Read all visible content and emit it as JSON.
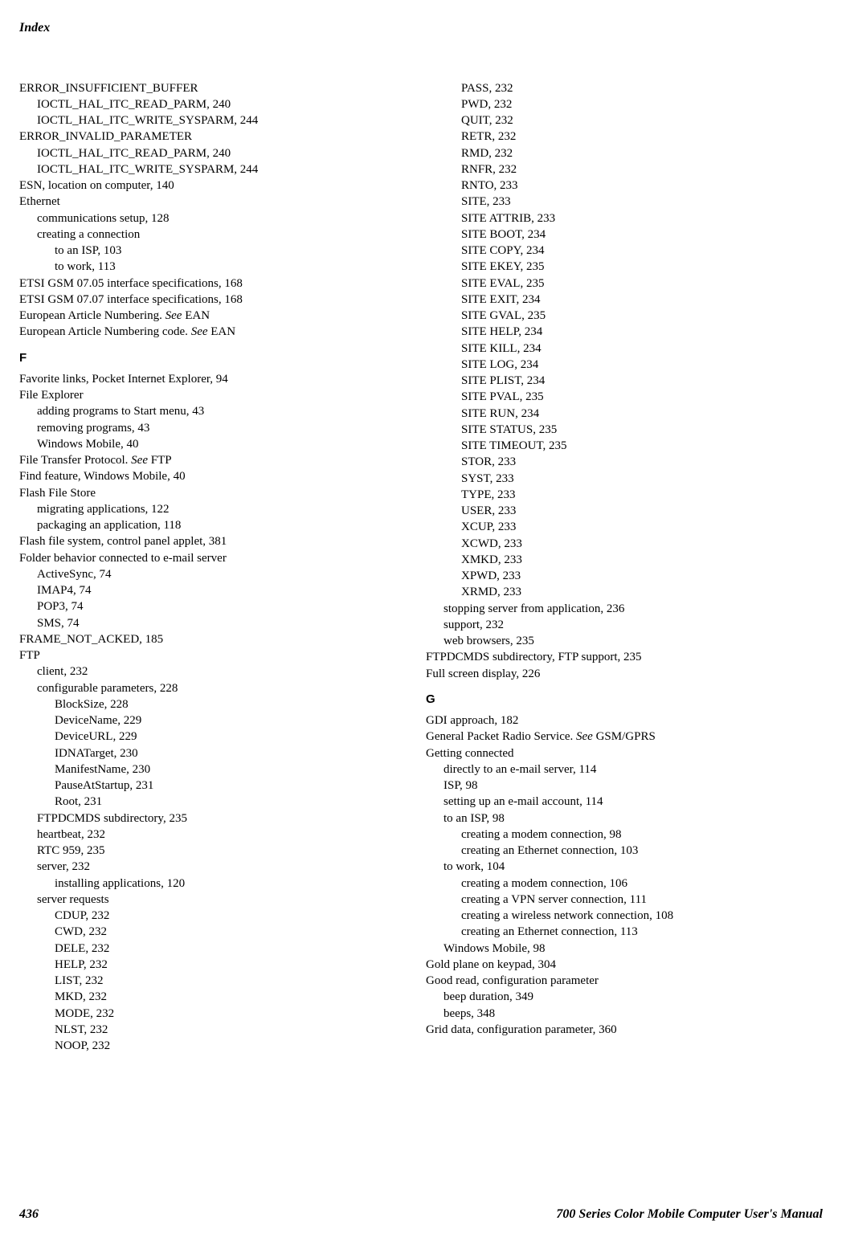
{
  "header": "Index",
  "footer": {
    "page": "436",
    "title": "700 Series Color Mobile Computer User's Manual"
  },
  "col1": [
    {
      "t": "ERROR_INSUFFICIENT_BUFFER",
      "l": 0
    },
    {
      "t": "IOCTL_HAL_ITC_READ_PARM, 240",
      "l": 1
    },
    {
      "t": "IOCTL_HAL_ITC_WRITE_SYSPARM, 244",
      "l": 1
    },
    {
      "t": "ERROR_INVALID_PARAMETER",
      "l": 0
    },
    {
      "t": "IOCTL_HAL_ITC_READ_PARM, 240",
      "l": 1
    },
    {
      "t": "IOCTL_HAL_ITC_WRITE_SYSPARM, 244",
      "l": 1
    },
    {
      "t": "ESN, location on computer, 140",
      "l": 0
    },
    {
      "t": "Ethernet",
      "l": 0
    },
    {
      "t": "communications setup, 128",
      "l": 1
    },
    {
      "t": "creating a connection",
      "l": 1
    },
    {
      "t": "to an ISP, 103",
      "l": 2
    },
    {
      "t": "to work, 113",
      "l": 2
    },
    {
      "t": "ETSI GSM 07.05 interface specifications, 168",
      "l": 0
    },
    {
      "t": "ETSI GSM 07.07 interface specifications, 168",
      "l": 0
    },
    {
      "t": "European Article Numbering. <em>See</em> EAN",
      "l": 0
    },
    {
      "t": "European Article Numbering code. <em>See</em> EAN",
      "l": 0
    },
    {
      "t": "F",
      "l": 0,
      "letter": true
    },
    {
      "t": "Favorite links, Pocket Internet Explorer, 94",
      "l": 0
    },
    {
      "t": "File Explorer",
      "l": 0
    },
    {
      "t": "adding programs to Start menu, 43",
      "l": 1
    },
    {
      "t": "removing programs, 43",
      "l": 1
    },
    {
      "t": "Windows Mobile, 40",
      "l": 1
    },
    {
      "t": "File Transfer Protocol. <em>See</em> FTP",
      "l": 0
    },
    {
      "t": "Find feature, Windows Mobile, 40",
      "l": 0
    },
    {
      "t": "Flash File Store",
      "l": 0
    },
    {
      "t": "migrating applications, 122",
      "l": 1
    },
    {
      "t": "packaging an application, 118",
      "l": 1
    },
    {
      "t": "Flash file system, control panel applet, 381",
      "l": 0
    },
    {
      "t": "Folder behavior connected to e-mail server",
      "l": 0
    },
    {
      "t": "ActiveSync, 74",
      "l": 1
    },
    {
      "t": "IMAP4, 74",
      "l": 1
    },
    {
      "t": "POP3, 74",
      "l": 1
    },
    {
      "t": "SMS, 74",
      "l": 1
    },
    {
      "t": "FRAME_NOT_ACKED, 185",
      "l": 0
    },
    {
      "t": "FTP",
      "l": 0
    },
    {
      "t": "client, 232",
      "l": 1
    },
    {
      "t": "configurable parameters, 228",
      "l": 1
    },
    {
      "t": "BlockSize, 228",
      "l": 2
    },
    {
      "t": "DeviceName, 229",
      "l": 2
    },
    {
      "t": "DeviceURL, 229",
      "l": 2
    },
    {
      "t": "IDNATarget, 230",
      "l": 2
    },
    {
      "t": "ManifestName, 230",
      "l": 2
    },
    {
      "t": "PauseAtStartup, 231",
      "l": 2
    },
    {
      "t": "Root, 231",
      "l": 2
    },
    {
      "t": "FTPDCMDS subdirectory, 235",
      "l": 1
    },
    {
      "t": "heartbeat, 232",
      "l": 1
    },
    {
      "t": "RTC 959, 235",
      "l": 1
    },
    {
      "t": "server, 232",
      "l": 1
    },
    {
      "t": "installing applications, 120",
      "l": 2
    },
    {
      "t": "server requests",
      "l": 1
    },
    {
      "t": "CDUP, 232",
      "l": 2
    },
    {
      "t": "CWD, 232",
      "l": 2
    },
    {
      "t": "DELE, 232",
      "l": 2
    },
    {
      "t": "HELP, 232",
      "l": 2
    },
    {
      "t": "LIST, 232",
      "l": 2
    },
    {
      "t": "MKD, 232",
      "l": 2
    },
    {
      "t": "MODE, 232",
      "l": 2
    },
    {
      "t": "NLST, 232",
      "l": 2
    },
    {
      "t": "NOOP, 232",
      "l": 2
    }
  ],
  "col2": [
    {
      "t": "PASS, 232",
      "l": 2
    },
    {
      "t": "PWD, 232",
      "l": 2
    },
    {
      "t": "QUIT, 232",
      "l": 2
    },
    {
      "t": "RETR, 232",
      "l": 2
    },
    {
      "t": "RMD, 232",
      "l": 2
    },
    {
      "t": "RNFR, 232",
      "l": 2
    },
    {
      "t": "RNTO, 233",
      "l": 2
    },
    {
      "t": "SITE, 233",
      "l": 2
    },
    {
      "t": "SITE ATTRIB, 233",
      "l": 2
    },
    {
      "t": "SITE BOOT, 234",
      "l": 2
    },
    {
      "t": "SITE COPY, 234",
      "l": 2
    },
    {
      "t": "SITE EKEY, 235",
      "l": 2
    },
    {
      "t": "SITE EVAL, 235",
      "l": 2
    },
    {
      "t": "SITE EXIT, 234",
      "l": 2
    },
    {
      "t": "SITE GVAL, 235",
      "l": 2
    },
    {
      "t": "SITE HELP, 234",
      "l": 2
    },
    {
      "t": "SITE KILL, 234",
      "l": 2
    },
    {
      "t": "SITE LOG, 234",
      "l": 2
    },
    {
      "t": "SITE PLIST, 234",
      "l": 2
    },
    {
      "t": "SITE PVAL, 235",
      "l": 2
    },
    {
      "t": "SITE RUN, 234",
      "l": 2
    },
    {
      "t": "SITE STATUS, 235",
      "l": 2
    },
    {
      "t": "SITE TIMEOUT, 235",
      "l": 2
    },
    {
      "t": "STOR, 233",
      "l": 2
    },
    {
      "t": "SYST, 233",
      "l": 2
    },
    {
      "t": "TYPE, 233",
      "l": 2
    },
    {
      "t": "USER, 233",
      "l": 2
    },
    {
      "t": "XCUP, 233",
      "l": 2
    },
    {
      "t": "XCWD, 233",
      "l": 2
    },
    {
      "t": "XMKD, 233",
      "l": 2
    },
    {
      "t": "XPWD, 233",
      "l": 2
    },
    {
      "t": "XRMD, 233",
      "l": 2
    },
    {
      "t": "stopping server from application, 236",
      "l": 1
    },
    {
      "t": "support, 232",
      "l": 1
    },
    {
      "t": "web browsers, 235",
      "l": 1
    },
    {
      "t": "FTPDCMDS subdirectory, FTP support, 235",
      "l": 0
    },
    {
      "t": "Full screen display, 226",
      "l": 0
    },
    {
      "t": "G",
      "l": 0,
      "letter": true
    },
    {
      "t": "GDI approach, 182",
      "l": 0
    },
    {
      "t": "General Packet Radio Service. <em>See</em> GSM/GPRS",
      "l": 0
    },
    {
      "t": "Getting connected",
      "l": 0
    },
    {
      "t": "directly to an e-mail server, 114",
      "l": 1
    },
    {
      "t": "ISP, 98",
      "l": 1
    },
    {
      "t": "setting up an e-mail account, 114",
      "l": 1
    },
    {
      "t": "to an ISP, 98",
      "l": 1
    },
    {
      "t": "creating a modem connection, 98",
      "l": 2
    },
    {
      "t": "creating an Ethernet connection, 103",
      "l": 2
    },
    {
      "t": "to work, 104",
      "l": 1
    },
    {
      "t": "creating a modem connection, 106",
      "l": 2
    },
    {
      "t": "creating a VPN server connection, 111",
      "l": 2
    },
    {
      "t": "creating a wireless network connection, 108",
      "l": 2
    },
    {
      "t": "creating an Ethernet connection, 113",
      "l": 2
    },
    {
      "t": "Windows Mobile, 98",
      "l": 1
    },
    {
      "t": "Gold plane on keypad, 304",
      "l": 0
    },
    {
      "t": "Good read, configuration parameter",
      "l": 0
    },
    {
      "t": "beep duration, 349",
      "l": 1
    },
    {
      "t": "beeps, 348",
      "l": 1
    },
    {
      "t": "Grid data, configuration parameter, 360",
      "l": 0
    }
  ]
}
